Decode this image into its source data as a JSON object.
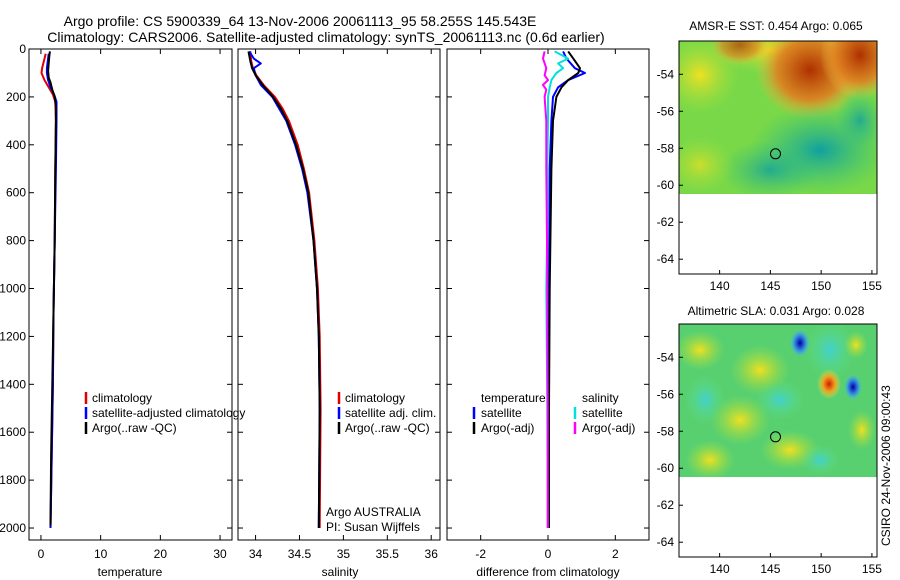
{
  "title_line1": "Argo profile: CS 5900339_64 13-Nov-2006 20061113_95 58.255S 145.543E",
  "title_line2": "Climatology: CARS2006. Satellite-adjusted climatology: synTS_20061113.nc (0.6d earlier)",
  "footer_stamp": "CSIRO 24-Nov-2006 09:00:43",
  "colors": {
    "clim": "#e00000",
    "sat": "#0000ff",
    "argo": "#000000",
    "sal_sat": "#00e0e0",
    "sal_argo": "#ff00ff"
  },
  "chart_data": [
    {
      "type": "line",
      "name": "temperature",
      "xlabel": "temperature",
      "xlim": [
        -2,
        32
      ],
      "ylim": [
        2050,
        0
      ],
      "xticks": [
        0,
        10,
        20,
        30
      ],
      "yticks": [
        0,
        200,
        400,
        600,
        800,
        1000,
        1200,
        1400,
        1600,
        1800,
        2000
      ],
      "legend": [
        "climatology",
        "satellite-adjusted climatology",
        "Argo(..raw -QC)"
      ],
      "series": [
        {
          "name": "climatology",
          "depth": [
            20,
            40,
            60,
            80,
            100,
            130,
            160,
            190,
            220,
            300,
            500,
            800,
            1100,
            1400,
            1700,
            2000
          ],
          "values": [
            0.8,
            0.6,
            0.4,
            0.2,
            0.1,
            0.6,
            1.3,
            2.0,
            2.4,
            2.5,
            2.4,
            2.3,
            2.1,
            2.0,
            1.8,
            1.6
          ]
        },
        {
          "name": "satellite-adjusted climatology",
          "depth": [
            20,
            40,
            60,
            80,
            100,
            130,
            160,
            190,
            220,
            300,
            500,
            800,
            1100,
            1400,
            1700,
            2000
          ],
          "values": [
            1.3,
            1.2,
            1.1,
            1.0,
            1.0,
            1.2,
            1.6,
            2.2,
            2.6,
            2.6,
            2.5,
            2.3,
            2.1,
            2.0,
            1.8,
            1.6
          ]
        },
        {
          "name": "Argo(..raw -QC)",
          "depth": [
            10,
            30,
            60,
            90,
            120,
            140,
            170,
            200,
            240,
            300,
            500,
            800,
            1100,
            1400,
            1700,
            1990
          ],
          "values": [
            1.5,
            1.4,
            1.3,
            1.2,
            1.3,
            1.6,
            1.9,
            2.3,
            2.5,
            2.5,
            2.4,
            2.3,
            2.1,
            1.9,
            1.7,
            1.6
          ]
        }
      ]
    },
    {
      "type": "line",
      "name": "salinity",
      "xlabel": "salinity",
      "xlim": [
        33.8,
        36.1
      ],
      "ylim": [
        2050,
        0
      ],
      "xticks": [
        34,
        34.5,
        35,
        35.5,
        36
      ],
      "yticks": [
        0,
        200,
        400,
        600,
        800,
        1000,
        1200,
        1400,
        1600,
        1800,
        2000
      ],
      "legend": [
        "climatology",
        "satellite adj. clim.",
        "Argo(..raw -QC)"
      ],
      "series": [
        {
          "name": "climatology",
          "depth": [
            10,
            50,
            80,
            110,
            150,
            200,
            250,
            300,
            400,
            500,
            600,
            800,
            1000,
            1200,
            1500,
            2000
          ],
          "values": [
            33.94,
            33.95,
            33.97,
            34.01,
            34.09,
            34.22,
            34.31,
            34.38,
            34.48,
            34.55,
            34.61,
            34.67,
            34.71,
            34.73,
            34.74,
            34.73
          ]
        },
        {
          "name": "satellite adj. clim.",
          "depth": [
            10,
            40,
            60,
            80,
            110,
            150,
            200,
            250,
            300,
            400,
            500,
            600,
            800,
            1000,
            1200,
            1500,
            2000
          ],
          "values": [
            33.93,
            33.98,
            34.06,
            33.98,
            34.0,
            34.06,
            34.19,
            34.27,
            34.35,
            34.45,
            34.53,
            34.59,
            34.66,
            34.7,
            34.72,
            34.73,
            34.72
          ]
        },
        {
          "name": "Argo(..raw -QC)",
          "depth": [
            10,
            50,
            80,
            110,
            150,
            200,
            250,
            300,
            400,
            500,
            600,
            800,
            1000,
            1200,
            1500,
            2000
          ],
          "values": [
            33.92,
            33.94,
            33.96,
            34.0,
            34.08,
            34.2,
            34.29,
            34.36,
            34.46,
            34.54,
            34.6,
            34.66,
            34.7,
            34.72,
            34.73,
            34.72
          ]
        }
      ],
      "annotation_line1": "Argo AUSTRALIA",
      "annotation_line2": "PI: Susan Wijffels"
    },
    {
      "type": "line",
      "name": "difference",
      "xlabel": "difference from climatology",
      "xlim": [
        -3,
        3
      ],
      "ylim": [
        2050,
        0
      ],
      "xticks": [
        -2,
        0,
        2
      ],
      "yticks": [
        0,
        200,
        400,
        600,
        800,
        1000,
        1200,
        1400,
        1600,
        1800,
        2000
      ],
      "legend_title_left": "temperature",
      "legend_title_right": "salinity",
      "legend": [
        "satellite",
        "Argo(-adj)",
        "satellite",
        "Argo(-adj)"
      ],
      "series": [
        {
          "name": "temperature satellite",
          "depth": [
            10,
            40,
            80,
            100,
            130,
            160,
            200,
            300,
            500,
            1000,
            1500,
            2000
          ],
          "values": [
            0.45,
            0.55,
            0.8,
            1.1,
            0.6,
            0.3,
            0.15,
            0.1,
            0.05,
            0.03,
            0.02,
            0.02
          ]
        },
        {
          "name": "temperature Argo(-adj)",
          "depth": [
            10,
            40,
            80,
            100,
            130,
            160,
            200,
            300,
            500,
            1000,
            1500,
            2000
          ],
          "values": [
            0.6,
            0.75,
            0.95,
            0.9,
            0.6,
            0.4,
            0.25,
            0.15,
            0.1,
            0.05,
            0.03,
            0.03
          ]
        },
        {
          "name": "salinity satellite",
          "depth": [
            10,
            40,
            60,
            80,
            100,
            130,
            160,
            200,
            300,
            500,
            800,
            1000,
            1200,
            1500,
            2000
          ],
          "values": [
            0.2,
            0.6,
            0.3,
            0.45,
            0.25,
            0.1,
            0.05,
            0.0,
            0.0,
            -0.02,
            -0.03,
            -0.05,
            -0.04,
            -0.02,
            -0.01
          ]
        },
        {
          "name": "salinity Argo(-adj)",
          "depth": [
            10,
            40,
            80,
            110,
            130,
            150,
            170,
            200,
            300,
            500,
            800,
            1000,
            1200,
            1500,
            2000
          ],
          "values": [
            -0.1,
            -0.15,
            -0.05,
            -0.1,
            0.0,
            -0.15,
            -0.05,
            -0.1,
            -0.05,
            -0.05,
            -0.03,
            -0.02,
            -0.02,
            -0.01,
            -0.01
          ]
        }
      ]
    },
    {
      "type": "heatmap",
      "name": "sst-map",
      "title": "AMSR-E SST: 0.454 Argo: 0.065",
      "xlim": [
        136,
        155.5
      ],
      "ylim": [
        -64.8,
        -52.2
      ],
      "xticks": [
        140,
        145,
        150,
        155
      ],
      "yticks": [
        -54,
        -56,
        -58,
        -60,
        -62,
        -64
      ],
      "marker": {
        "lon": 145.5,
        "lat": -58.3
      }
    },
    {
      "type": "heatmap",
      "name": "sla-map",
      "title": "Altimetric SLA: 0.031 Argo: 0.028",
      "xlim": [
        136,
        155.5
      ],
      "ylim": [
        -64.8,
        -52.2
      ],
      "xticks": [
        140,
        145,
        150,
        155
      ],
      "yticks": [
        -54,
        -56,
        -58,
        -60,
        -62,
        -64
      ],
      "marker": {
        "lon": 145.5,
        "lat": -58.3
      }
    }
  ]
}
